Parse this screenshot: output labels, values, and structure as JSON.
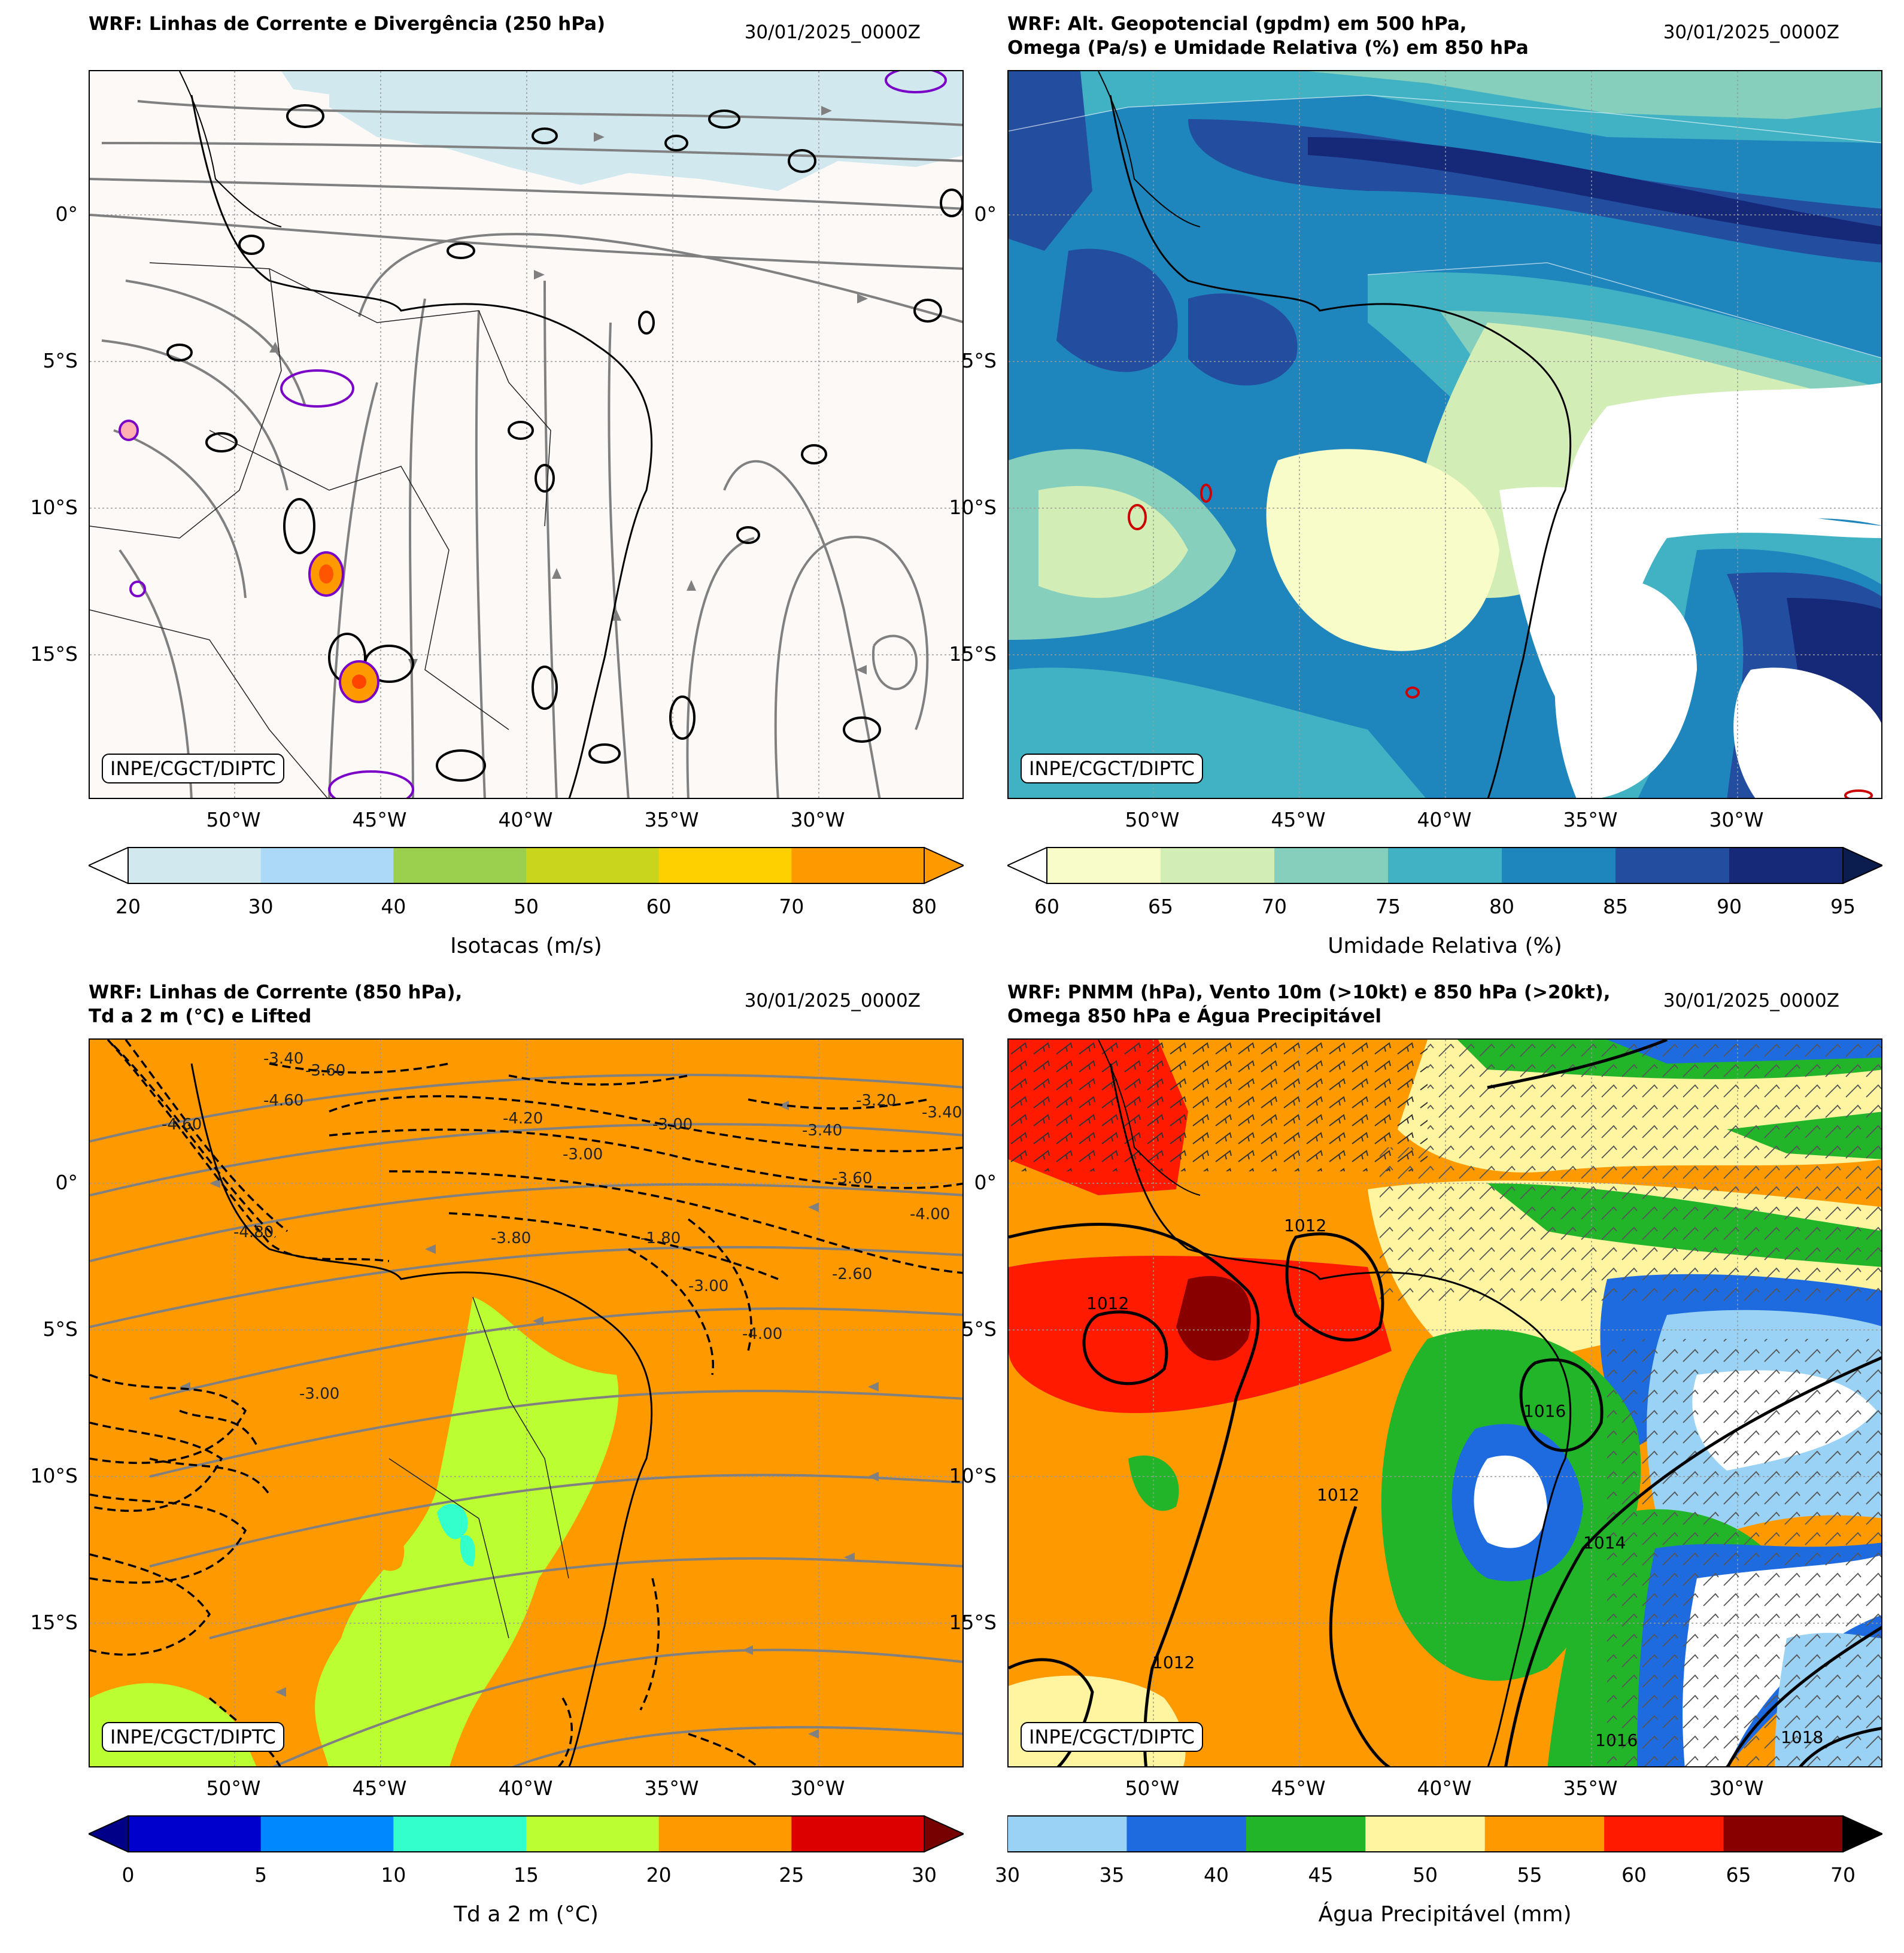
{
  "credit": "INPE/CGCT/DIPTC",
  "lon_ticks": [
    "50°W",
    "45°W",
    "40°W",
    "35°W",
    "30°W"
  ],
  "lat_ticks": [
    "0°",
    "5°S",
    "10°S",
    "15°S"
  ],
  "panels": [
    {
      "title_lines": [
        "WRF: Linhas de Corrente e Divergência (250 hPa)"
      ],
      "date": "30/01/2025_0000Z",
      "colorbar": {
        "label": "Isotacas (m/s)",
        "ticks": [
          "20",
          "30",
          "40",
          "50",
          "60",
          "70",
          "80"
        ],
        "colors": [
          "#d1e9ee",
          "#acd9f8",
          "#9bd04f",
          "#c8d51c",
          "#ffd000",
          "#ff9900"
        ],
        "under": "#ffffff",
        "over": "#ff9900"
      }
    },
    {
      "title_lines": [
        "WRF: Alt. Geopotencial (gpdm) em 500 hPa,",
        "Omega (Pa/s) e Umidade Relativa (%) em 850 hPa"
      ],
      "date": "30/01/2025_0000Z",
      "colorbar": {
        "label": "Umidade Relativa (%)",
        "ticks": [
          "60",
          "65",
          "70",
          "75",
          "80",
          "85",
          "90",
          "95"
        ],
        "colors": [
          "#f8fcc8",
          "#d3edb7",
          "#85cfbc",
          "#40b2c4",
          "#1f86bd",
          "#234e9f",
          "#162878"
        ],
        "under": "#ffffff",
        "over": "#0b1c4f"
      }
    },
    {
      "title_lines": [
        "WRF: Linhas de Corrente (850 hPa),",
        "Td a 2 m (°C) e Lifted"
      ],
      "date": "30/01/2025_0000Z",
      "contour_labels": [
        "-3.40",
        "-3.60",
        "-4.60",
        "-4.60",
        "-4.20",
        "-3.00",
        "-3.40",
        "-3.20",
        "-3.40",
        "-4.80",
        "-3.80",
        "-1.80",
        "-2.60",
        "-4.00",
        "-3.60",
        "-3.00",
        "-4.00",
        "-3.00",
        "-3.00"
      ],
      "colorbar": {
        "label": "Td a 2 m (°C)",
        "ticks": [
          "0",
          "5",
          "10",
          "15",
          "20",
          "25",
          "30"
        ],
        "colors": [
          "#0000cc",
          "#0088ff",
          "#33ffcc",
          "#bbff33",
          "#ff9900",
          "#dd0000"
        ],
        "under": "#000088",
        "over": "#770000"
      }
    },
    {
      "title_lines": [
        "WRF: PNMM (hPa), Vento 10m (>10kt) e 850 hPa (>20kt),",
        "Omega 850 hPa e Água Precipitável"
      ],
      "date": "30/01/2025_0000Z",
      "isobar_labels": [
        "1012",
        "1012",
        "1012",
        "1012",
        "1014",
        "1016",
        "1016",
        "1018"
      ],
      "colorbar": {
        "label": "Água Precipitável (mm)",
        "ticks": [
          "30",
          "35",
          "40",
          "45",
          "50",
          "55",
          "60",
          "65",
          "70"
        ],
        "colors": [
          "#99d2f5",
          "#1e6be0",
          "#22b52a",
          "#fff5a0",
          "#ff9900",
          "#ff1a00",
          "#880000"
        ],
        "over": "#000000"
      }
    }
  ]
}
